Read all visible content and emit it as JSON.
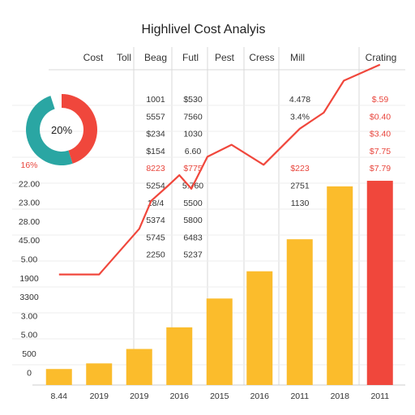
{
  "chart_data": {
    "type": "bar",
    "title": "Highlivel Cost Analyis",
    "header_labels": [
      "Cost",
      "Toll",
      "Beag",
      "Futl",
      "Pest",
      "Cress",
      "Mill",
      "Crating"
    ],
    "table": {
      "col1": [
        "1001",
        "5557",
        "$234",
        "$154",
        "8223",
        "5254",
        "18/4",
        "5374",
        "5745",
        "2250"
      ],
      "col2": [
        "$530",
        "7560",
        "1030",
        "6.60",
        "$775",
        "5.760",
        "5500",
        "5800",
        "6483",
        "5237"
      ],
      "col3": [
        "4.478",
        "3.4%",
        "",
        "",
        "$223",
        "2751",
        "1130"
      ],
      "col4": [
        "$.59",
        "$0.40",
        "$3.40",
        "$7.75",
        "$7.79"
      ],
      "red_rows_col12": [
        4
      ],
      "red_rows_col3": [
        4
      ],
      "red_rows_col4": [
        0,
        1,
        2,
        3,
        4
      ]
    },
    "donut": {
      "label": "20%",
      "slices": [
        {
          "share": 0.45,
          "color": "#f0473c"
        },
        {
          "share": 0.5,
          "color": "#2aa6a3"
        },
        {
          "share": 0.05,
          "color": "#ffffff"
        }
      ]
    },
    "y_tick_labels": [
      "16%",
      "22.00",
      "23.00",
      "28.00",
      "45.00",
      "5.00",
      "1900",
      "3300",
      "3.00",
      "5.00",
      "500",
      "0"
    ],
    "y_tick_red": [
      0
    ],
    "categories": [
      "8.44",
      "2019",
      "2019",
      "2016",
      "2015",
      "2016",
      "2011",
      "2018",
      "2011"
    ],
    "bar_values": [
      20,
      27,
      45,
      72,
      108,
      142,
      182,
      248,
      255
    ],
    "bar_colors": [
      "#fbbc2c",
      "#fbbc2c",
      "#fbbc2c",
      "#fbbc2c",
      "#fbbc2c",
      "#fbbc2c",
      "#fbbc2c",
      "#fbbc2c",
      "#f0473c"
    ],
    "line_values": [
      138,
      138,
      195,
      230,
      248,
      262,
      245,
      285,
      300,
      275,
      320,
      340,
      380,
      400
    ],
    "line_x": [
      0.5,
      1.5,
      2.5,
      2.8,
      3.2,
      3.5,
      3.8,
      4.2,
      4.8,
      5.6,
      6.5,
      7.1,
      7.6,
      8.5
    ],
    "ylim": [
      0,
      420
    ],
    "colors": {
      "bar": "#fbbc2c",
      "accent": "#f0473c",
      "teal": "#2aa6a3",
      "grid": "#d9d9d9"
    }
  }
}
